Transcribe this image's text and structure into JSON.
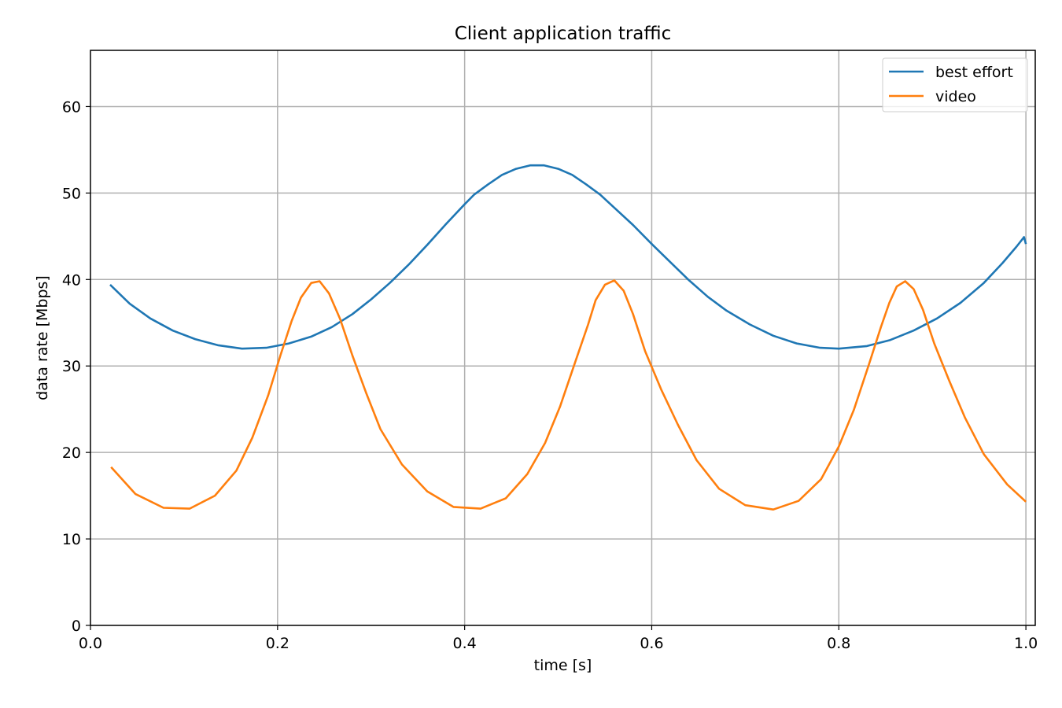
{
  "chart_data": {
    "type": "line",
    "title": "Client application traffic",
    "xlabel": "time [s]",
    "ylabel": "data rate [Mbps]",
    "xlim": [
      0.0,
      1.01
    ],
    "ylim": [
      0,
      66.5
    ],
    "x_ticks": [
      0.0,
      0.2,
      0.4,
      0.6,
      0.8,
      1.0
    ],
    "x_tick_labels": [
      "0.0",
      "0.2",
      "0.4",
      "0.6",
      "0.8",
      "1.0"
    ],
    "y_ticks": [
      0,
      10,
      20,
      30,
      40,
      50,
      60
    ],
    "y_tick_labels": [
      "0",
      "10",
      "20",
      "30",
      "40",
      "50",
      "60"
    ],
    "grid": true,
    "legend_position": "top-right",
    "series": [
      {
        "name": "best effort",
        "color": "#1f77b4",
        "points": [
          [
            0.021,
            39.4
          ],
          [
            0.042,
            37.2
          ],
          [
            0.064,
            35.5
          ],
          [
            0.088,
            34.1
          ],
          [
            0.112,
            33.1
          ],
          [
            0.136,
            32.4
          ],
          [
            0.162,
            32.0
          ],
          [
            0.188,
            32.1
          ],
          [
            0.212,
            32.6
          ],
          [
            0.236,
            33.4
          ],
          [
            0.258,
            34.5
          ],
          [
            0.28,
            36.0
          ],
          [
            0.3,
            37.7
          ],
          [
            0.32,
            39.6
          ],
          [
            0.34,
            41.7
          ],
          [
            0.36,
            44.0
          ],
          [
            0.38,
            46.4
          ],
          [
            0.4,
            48.7
          ],
          [
            0.41,
            49.8
          ],
          [
            0.425,
            51.0
          ],
          [
            0.44,
            52.1
          ],
          [
            0.455,
            52.8
          ],
          [
            0.47,
            53.2
          ],
          [
            0.485,
            53.2
          ],
          [
            0.5,
            52.8
          ],
          [
            0.515,
            52.1
          ],
          [
            0.53,
            51.0
          ],
          [
            0.545,
            49.8
          ],
          [
            0.56,
            48.3
          ],
          [
            0.58,
            46.3
          ],
          [
            0.6,
            44.1
          ],
          [
            0.62,
            42.0
          ],
          [
            0.64,
            39.9
          ],
          [
            0.66,
            38.0
          ],
          [
            0.68,
            36.4
          ],
          [
            0.705,
            34.8
          ],
          [
            0.73,
            33.5
          ],
          [
            0.755,
            32.6
          ],
          [
            0.78,
            32.1
          ],
          [
            0.8,
            32.0
          ],
          [
            0.83,
            32.3
          ],
          [
            0.855,
            33.0
          ],
          [
            0.88,
            34.1
          ],
          [
            0.905,
            35.5
          ],
          [
            0.93,
            37.3
          ],
          [
            0.955,
            39.6
          ],
          [
            0.975,
            41.9
          ],
          [
            0.99,
            43.8
          ],
          [
            0.998,
            44.9
          ],
          [
            1.0,
            44.1
          ]
        ]
      },
      {
        "name": "video",
        "color": "#ff7f0e",
        "points": [
          [
            0.022,
            18.3
          ],
          [
            0.048,
            15.2
          ],
          [
            0.078,
            13.6
          ],
          [
            0.106,
            13.5
          ],
          [
            0.133,
            15.0
          ],
          [
            0.156,
            17.9
          ],
          [
            0.173,
            21.7
          ],
          [
            0.19,
            26.6
          ],
          [
            0.203,
            31.2
          ],
          [
            0.215,
            35.2
          ],
          [
            0.225,
            37.9
          ],
          [
            0.236,
            39.6
          ],
          [
            0.245,
            39.8
          ],
          [
            0.255,
            38.4
          ],
          [
            0.267,
            35.4
          ],
          [
            0.28,
            31.2
          ],
          [
            0.295,
            26.8
          ],
          [
            0.31,
            22.7
          ],
          [
            0.333,
            18.6
          ],
          [
            0.36,
            15.5
          ],
          [
            0.388,
            13.7
          ],
          [
            0.417,
            13.5
          ],
          [
            0.444,
            14.7
          ],
          [
            0.467,
            17.5
          ],
          [
            0.486,
            21.1
          ],
          [
            0.502,
            25.3
          ],
          [
            0.518,
            30.4
          ],
          [
            0.532,
            34.8
          ],
          [
            0.54,
            37.6
          ],
          [
            0.55,
            39.4
          ],
          [
            0.56,
            39.9
          ],
          [
            0.57,
            38.7
          ],
          [
            0.58,
            36.0
          ],
          [
            0.593,
            31.7
          ],
          [
            0.61,
            27.3
          ],
          [
            0.628,
            23.2
          ],
          [
            0.648,
            19.1
          ],
          [
            0.672,
            15.8
          ],
          [
            0.7,
            13.9
          ],
          [
            0.73,
            13.4
          ],
          [
            0.757,
            14.4
          ],
          [
            0.781,
            16.9
          ],
          [
            0.8,
            20.7
          ],
          [
            0.816,
            24.9
          ],
          [
            0.832,
            30.1
          ],
          [
            0.845,
            34.5
          ],
          [
            0.854,
            37.3
          ],
          [
            0.862,
            39.2
          ],
          [
            0.871,
            39.8
          ],
          [
            0.88,
            38.9
          ],
          [
            0.89,
            36.5
          ],
          [
            0.902,
            32.6
          ],
          [
            0.918,
            28.3
          ],
          [
            0.935,
            24.0
          ],
          [
            0.955,
            19.8
          ],
          [
            0.98,
            16.3
          ],
          [
            1.0,
            14.3
          ]
        ]
      }
    ]
  }
}
